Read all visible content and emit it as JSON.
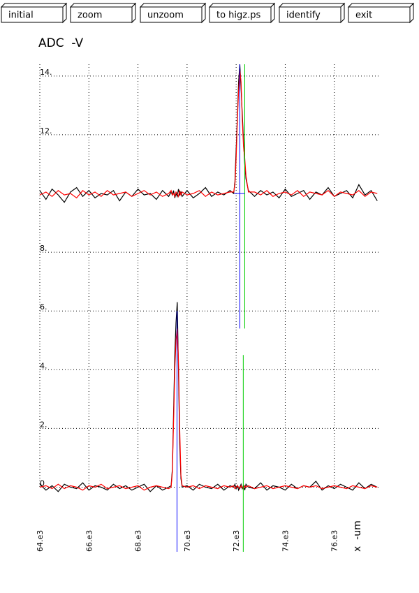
{
  "toolbar": {
    "buttons": [
      "initial",
      "zoom",
      "unzoom",
      "to higz.ps",
      "identify",
      "exit"
    ]
  },
  "chart_data": {
    "type": "line",
    "title": "ADC  -V",
    "x_label": "x  -um",
    "xlim": [
      64000,
      77800
    ],
    "ylim": [
      -2.2,
      14.4
    ],
    "xticks": [
      {
        "value": 64000,
        "label": "64.e3"
      },
      {
        "value": 66000,
        "label": "66.e3"
      },
      {
        "value": 68000,
        "label": "68.e3"
      },
      {
        "value": 70000,
        "label": "70.e3"
      },
      {
        "value": 72000,
        "label": "72.e3"
      },
      {
        "value": 74000,
        "label": "74.e3"
      },
      {
        "value": 76000,
        "label": "76.e3"
      }
    ],
    "yticks": [
      0,
      {
        "value": 2,
        "label": "2."
      },
      {
        "value": 4,
        "label": "4."
      },
      {
        "value": 6,
        "label": "6."
      },
      {
        "value": 8,
        "label": "8."
      },
      {
        "value": 12,
        "label": "12."
      },
      {
        "value": 14,
        "label": "14."
      }
    ],
    "grid": true,
    "x": [
      64000,
      64250,
      64500,
      64750,
      65000,
      65250,
      65500,
      65750,
      66000,
      66250,
      66500,
      66750,
      67000,
      67250,
      67500,
      67750,
      68000,
      68250,
      68500,
      68750,
      69000,
      69250,
      69350,
      69400,
      69450,
      69500,
      69550,
      69600,
      69650,
      69700,
      69750,
      69800,
      70000,
      70250,
      70500,
      70750,
      71000,
      71250,
      71500,
      71750,
      71900,
      71950,
      72000,
      72050,
      72100,
      72150,
      72200,
      72250,
      72300,
      72350,
      72400,
      72500,
      72750,
      73000,
      73250,
      73500,
      73750,
      74000,
      74250,
      74500,
      74750,
      75000,
      75250,
      75500,
      75750,
      76000,
      76250,
      76500,
      76750,
      77000,
      77250,
      77500,
      77750
    ],
    "series": [
      {
        "color": "#000000",
        "values": [
          10.1,
          9.8,
          10.15,
          9.95,
          9.7,
          10.05,
          10.2,
          9.9,
          10.1,
          9.85,
          10.0,
          9.95,
          10.1,
          9.75,
          10.05,
          9.9,
          10.15,
          9.95,
          10.0,
          9.8,
          10.1,
          9.9,
          10.05,
          9.95,
          10.1,
          9.85,
          10.0,
          9.9,
          10.15,
          9.95,
          10.05,
          9.9,
          10.1,
          9.85,
          10.0,
          10.2,
          9.9,
          10.05,
          9.95,
          10.1,
          10.0,
          10.4,
          11.5,
          12.6,
          13.8,
          14.4,
          13.6,
          12.7,
          11.8,
          11.0,
          10.5,
          10.1,
          9.9,
          10.1,
          9.95,
          10.05,
          9.85,
          10.15,
          9.9,
          10.0,
          10.1,
          9.8,
          10.05,
          9.95,
          10.2,
          9.9,
          10.0,
          10.1,
          9.85,
          10.3,
          9.95,
          10.1,
          9.75
        ]
      },
      {
        "color": "#ff0000",
        "values": [
          9.95,
          10.05,
          9.9,
          10.1,
          9.95,
          10.0,
          9.85,
          10.1,
          9.95,
          10.05,
          9.9,
          10.1,
          9.95,
          10.0,
          10.05,
          9.9,
          10.0,
          10.1,
          9.95,
          10.05,
          9.9,
          10.0,
          10.1,
          9.95,
          10.0,
          9.9,
          10.05,
          10.0,
          9.9,
          10.1,
          9.95,
          10.05,
          9.95,
          10.0,
          10.1,
          9.9,
          10.05,
          9.95,
          10.0,
          10.05,
          10.05,
          10.3,
          11.2,
          12.5,
          13.5,
          14.2,
          13.8,
          12.5,
          11.6,
          11.2,
          10.6,
          10.05,
          10.05,
          9.95,
          10.1,
          9.9,
          10.0,
          10.05,
          9.95,
          10.1,
          9.9,
          10.05,
          10.0,
          9.95,
          10.1,
          9.9,
          10.05,
          10.0,
          9.95,
          10.1,
          9.9,
          10.05,
          10.0
        ]
      },
      {
        "color": "#000000",
        "values": [
          0.1,
          -0.1,
          0.05,
          -0.15,
          0.1,
          0.0,
          -0.05,
          0.15,
          -0.1,
          0.05,
          0.0,
          -0.1,
          0.1,
          -0.05,
          0.05,
          -0.1,
          0.0,
          0.1,
          -0.15,
          0.05,
          -0.1,
          0.0,
          0.05,
          0.6,
          2.5,
          4.5,
          5.6,
          6.3,
          4.0,
          1.5,
          0.3,
          0.0,
          0.05,
          -0.1,
          0.1,
          0.0,
          -0.05,
          0.1,
          -0.1,
          0.05,
          0.0,
          0.1,
          -0.05,
          0.05,
          -0.1,
          0.0,
          0.1,
          -0.05,
          0.05,
          -0.1,
          0.1,
          0.0,
          -0.05,
          0.15,
          -0.1,
          0.05,
          0.0,
          -0.1,
          0.1,
          -0.05,
          0.05,
          0.0,
          0.2,
          -0.1,
          0.05,
          -0.05,
          0.1,
          0.0,
          -0.1,
          0.15,
          -0.05,
          0.1,
          0.0
        ]
      },
      {
        "color": "#ff0000",
        "values": [
          0.0,
          0.05,
          -0.05,
          0.1,
          -0.05,
          0.05,
          0.0,
          -0.1,
          0.05,
          0.0,
          0.1,
          -0.05,
          0.0,
          0.05,
          -0.05,
          0.0,
          0.05,
          -0.1,
          0.0,
          0.05,
          0.0,
          -0.05,
          0.0,
          0.5,
          2.2,
          4.0,
          5.0,
          5.4,
          4.3,
          2.0,
          0.4,
          0.05,
          0.0,
          0.05,
          -0.05,
          0.05,
          0.0,
          -0.05,
          0.05,
          0.0,
          0.05,
          -0.05,
          0.0,
          0.05,
          0.0,
          -0.05,
          0.05,
          0.0,
          -0.05,
          0.05,
          0.0,
          0.05,
          -0.05,
          0.0,
          0.05,
          -0.05,
          0.0,
          0.05,
          0.0,
          -0.05,
          0.05,
          0.0,
          0.05,
          -0.05,
          0.0,
          0.05,
          0.0,
          -0.05,
          0.05,
          0.0,
          -0.05,
          0.05,
          0.0
        ]
      }
    ],
    "vlines": [
      {
        "x": 72150,
        "from": 5.4,
        "to": 14.4,
        "color": "#0000ff"
      },
      {
        "x": 72350,
        "from": 5.4,
        "to": 14.4,
        "color": "#00cc00"
      },
      {
        "x": 69590,
        "from": -2.2,
        "to": 6.0,
        "color": "#0000ff"
      },
      {
        "x": 72290,
        "from": -2.2,
        "to": 4.5,
        "color": "#00cc00"
      }
    ],
    "hlines": [
      {
        "y": 10,
        "from": 71920,
        "to": 72350,
        "color": "#0000ff"
      }
    ]
  }
}
